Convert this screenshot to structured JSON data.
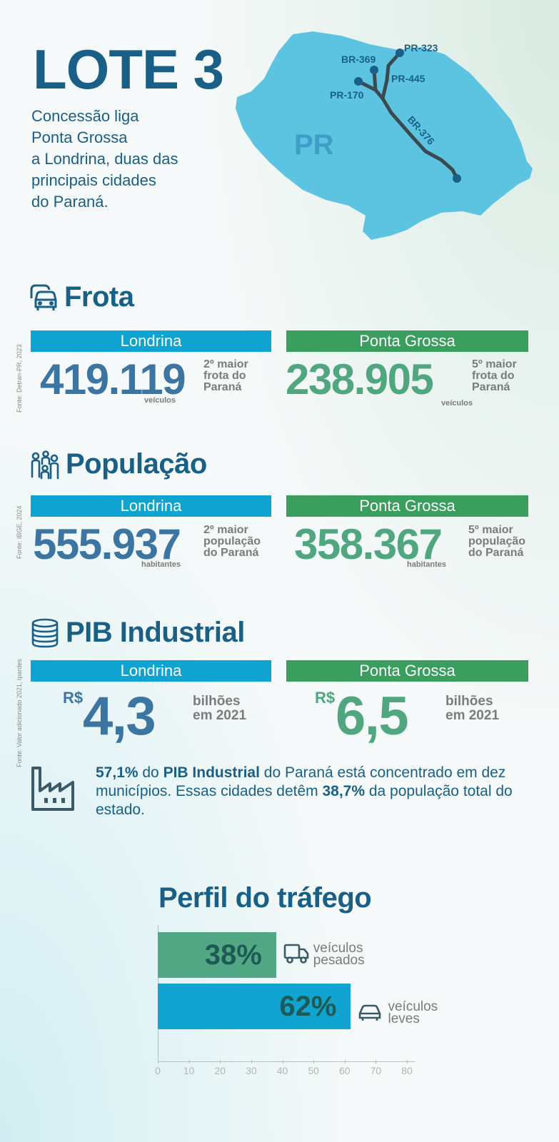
{
  "header": {
    "title": "LOTE 3",
    "intro_lines": [
      "Concessão liga",
      "Ponta Grossa",
      "a Londrina, duas das",
      "principais cidades",
      "do Paraná."
    ]
  },
  "map": {
    "state_label": "PR",
    "roads": [
      "PR-323",
      "BR-369",
      "PR-445",
      "PR-170",
      "BR-376"
    ],
    "state_color": "#5cc4e0",
    "road_color": "#3a4a52",
    "node_color": "#1a5f86"
  },
  "frota": {
    "title": "Frota",
    "icon": "cars-icon",
    "source": "Fonte: Detran-PR, 2023",
    "londrina": {
      "city": "Londrina",
      "value": "419.119",
      "unit": "veículos",
      "rank_lines": [
        "2º maior",
        "frota do",
        "Paraná"
      ]
    },
    "ponta_grossa": {
      "city": "Ponta Grossa",
      "value": "238.905",
      "unit": "veículos",
      "rank_lines": [
        "5º maior",
        "frota do",
        "Paraná"
      ]
    }
  },
  "populacao": {
    "title": "População",
    "icon": "people-icon",
    "source": "Fonte: IBGE, 2024",
    "londrina": {
      "city": "Londrina",
      "value": "555.937",
      "unit": "habitantes",
      "rank_lines": [
        "2º maior",
        "população",
        "do Paraná"
      ]
    },
    "ponta_grossa": {
      "city": "Ponta Grossa",
      "value": "358.367",
      "unit": "habitantes",
      "rank_lines": [
        "5º maior",
        "população",
        "do Paraná"
      ]
    }
  },
  "pib": {
    "title": "PIB Industrial",
    "icon": "coins-icon",
    "source": "Fonte: Valor adicionado 2021, Ipardes",
    "londrina": {
      "city": "Londrina",
      "currency": "R$",
      "value": "4,3",
      "unit_lines": [
        "bilhões",
        "em 2021"
      ]
    },
    "ponta_grossa": {
      "city": "Ponta Grossa",
      "currency": "R$",
      "value": "6,5",
      "unit_lines": [
        "bilhões",
        "em 2021"
      ]
    }
  },
  "note": {
    "icon": "factory-icon",
    "p1": "57,1%",
    "p2": " do ",
    "p3": "PIB Industrial",
    "p4": " do Paraná está concentrado em dez municípios. Essas cidades detêm ",
    "p5": "38,7%",
    "p6": " da população total do estado."
  },
  "traffic": {
    "title": "Perfil do tráfego",
    "heavy": {
      "label": "38%",
      "legend_lines": [
        "veículos",
        "pesados"
      ],
      "icon": "truck-icon"
    },
    "light": {
      "label": "62%",
      "legend_lines": [
        "veículos",
        "leves"
      ],
      "icon": "car-icon"
    }
  },
  "chart_data": {
    "type": "bar",
    "orientation": "horizontal",
    "categories": [
      "veículos pesados",
      "veículos leves"
    ],
    "values": [
      38,
      62
    ],
    "xlim": [
      0,
      80
    ],
    "ticks": [
      0,
      10,
      20,
      30,
      40,
      50,
      60,
      70,
      80
    ],
    "colors": [
      "#52a884",
      "#11a4d1"
    ],
    "grid": false
  },
  "colors": {
    "navy": "#1a5f86",
    "blue": "#0fa3d1",
    "green": "#3a9e5e",
    "num_blue": "#3c75a2",
    "num_green": "#4fa67f"
  }
}
